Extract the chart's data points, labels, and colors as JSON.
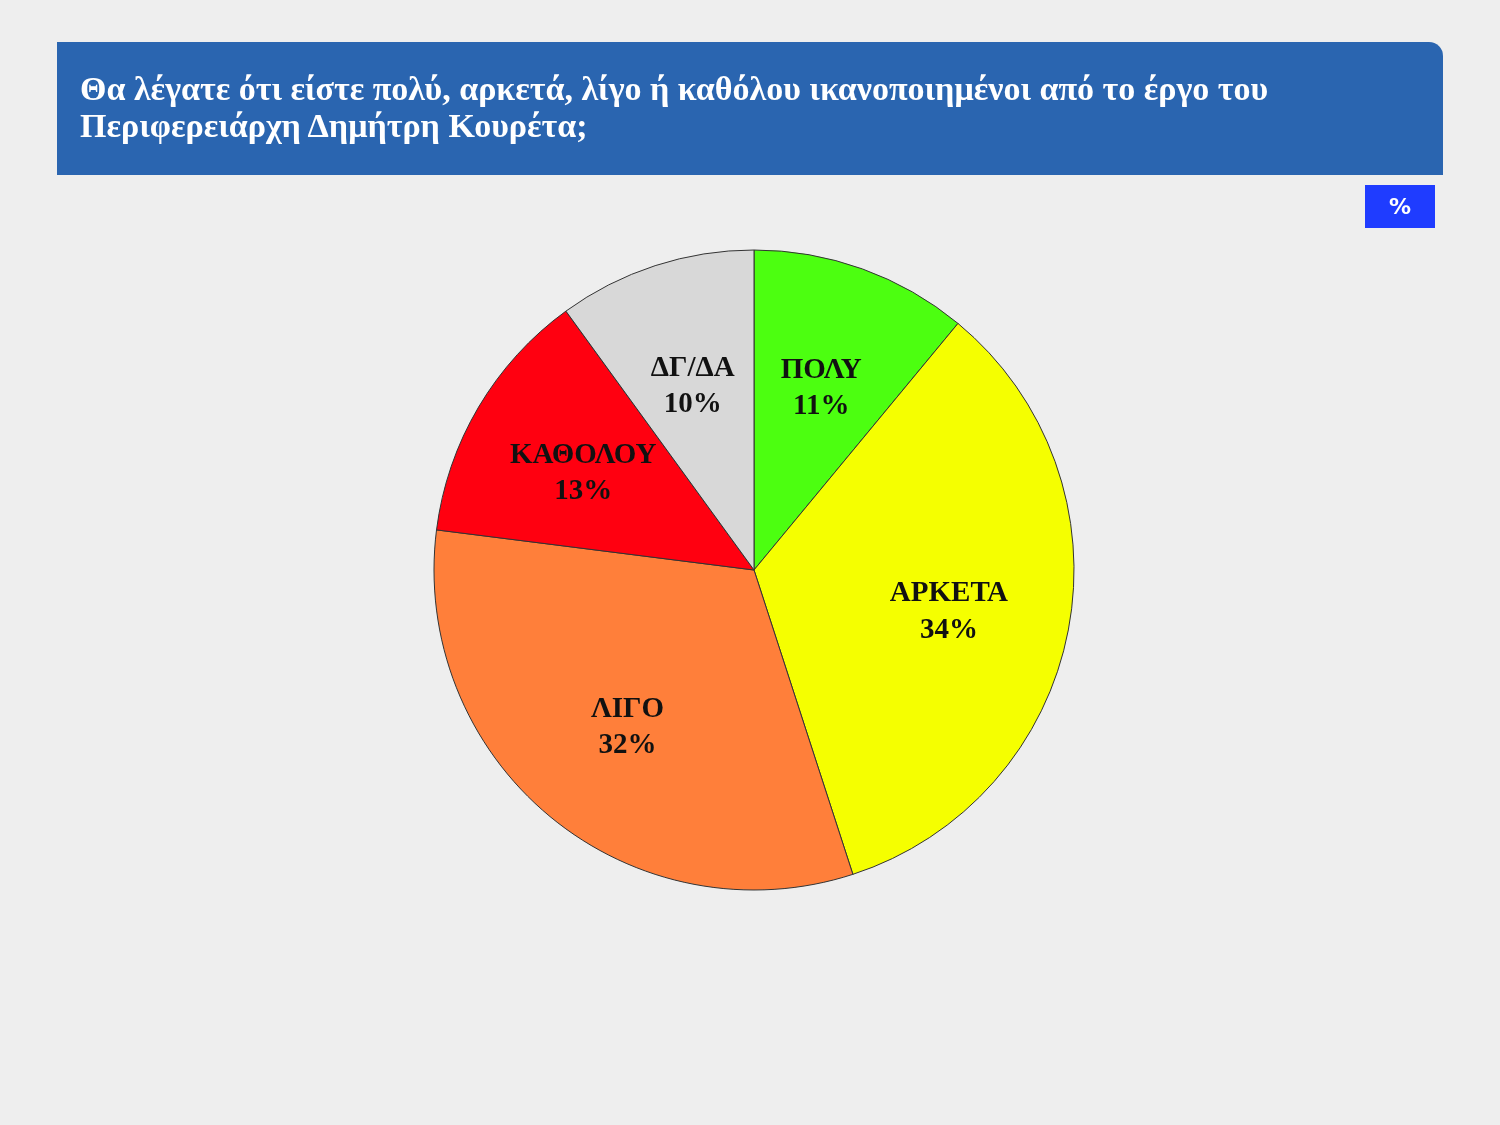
{
  "chart_data": {
    "type": "pie",
    "title": "Θα λέγατε ότι είστε πολύ, αρκετά, λίγο ή καθόλου ικανοποιημένοι από το έργο του Περιφερειάρχη Δημήτρη Κουρέτα;",
    "annotations": [
      "%"
    ],
    "categories": [
      "ΠΟΛΥ",
      "ΑΡΚΕΤΑ",
      "ΛΙΓΟ",
      "ΚΑΘΟΛΟΥ",
      "ΔΓ/ΔΑ"
    ],
    "values": [
      11,
      34,
      32,
      13,
      10
    ],
    "value_labels": [
      "11%",
      "34%",
      "32%",
      "13%",
      "10%"
    ],
    "colors": [
      "#4cff10",
      "#f5ff00",
      "#ff7f3a",
      "#ff0010",
      "#d8d8d8"
    ]
  }
}
